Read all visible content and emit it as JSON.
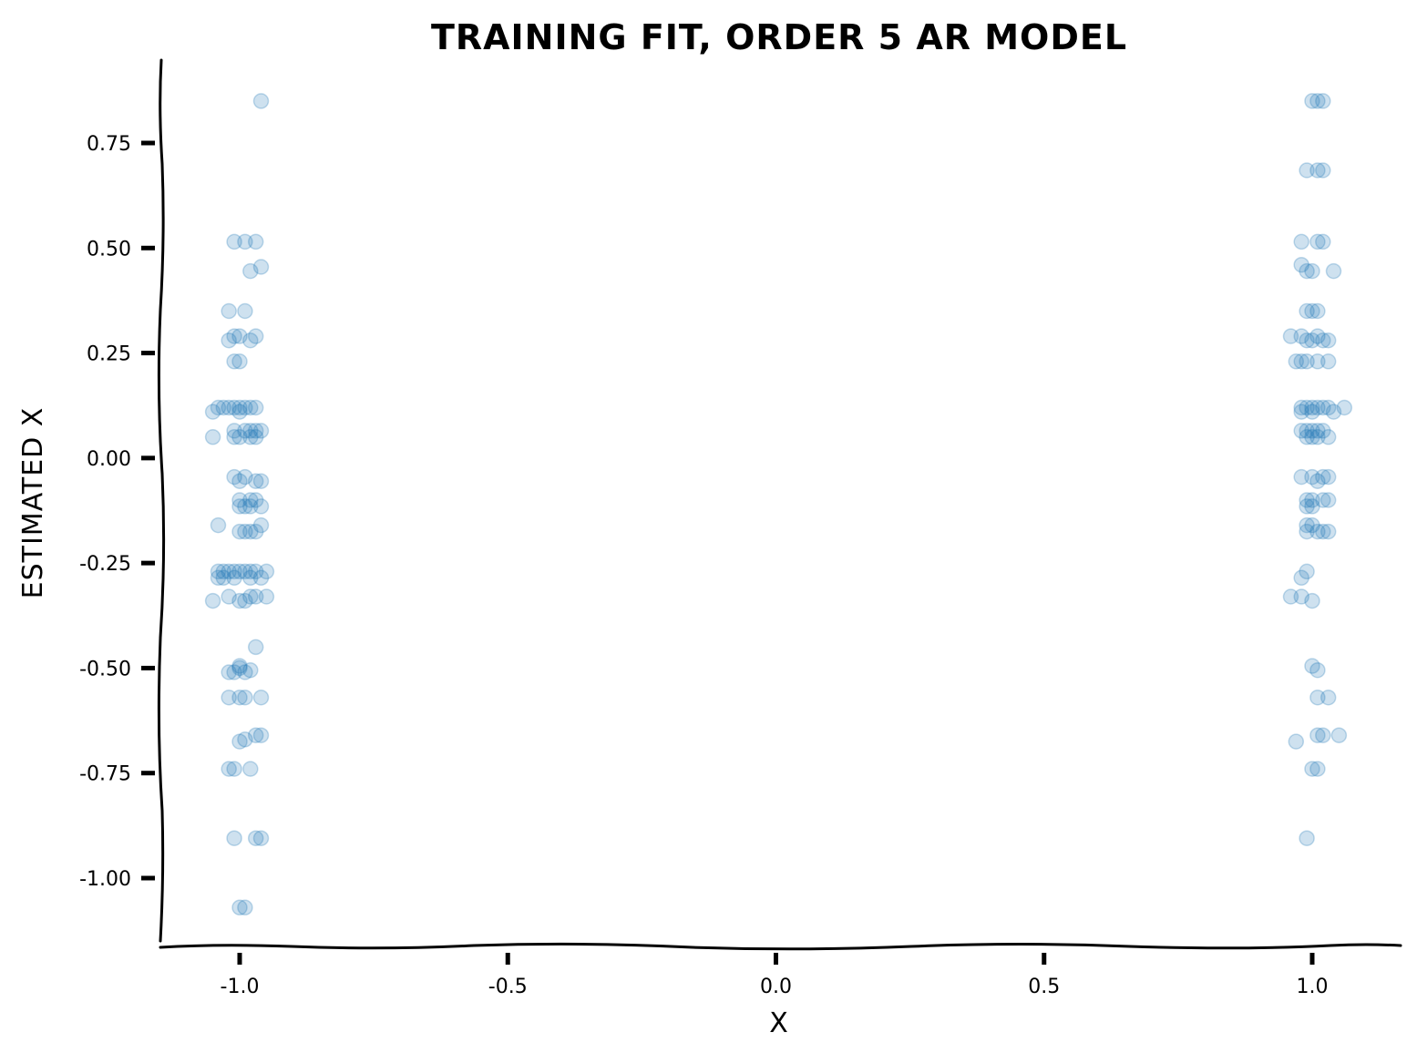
{
  "chart_data": {
    "type": "scatter",
    "title": "Training fit, order 5 AR model",
    "xlabel": "x",
    "ylabel": "Estimated x",
    "xlim": [
      -1.15,
      1.15
    ],
    "ylim": [
      -1.15,
      0.95
    ],
    "xticks": [
      -1.0,
      -0.5,
      0.0,
      0.5,
      1.0
    ],
    "xtick_labels": [
      "-1.0",
      "-0.5",
      "0.0",
      "0.5",
      "1.0"
    ],
    "yticks": [
      -1.0,
      -0.75,
      -0.5,
      -0.25,
      0.0,
      0.25,
      0.5,
      0.75
    ],
    "ytick_labels": [
      "-1.00",
      "-0.75",
      "-0.50",
      "-0.25",
      "0.00",
      "0.25",
      "0.50",
      "0.75"
    ],
    "grid": false,
    "marker_color": "#1f77b4",
    "marker_alpha": 0.22,
    "series": [
      {
        "points": [
          [
            -0.96,
            0.85
          ],
          [
            -1.01,
            0.515
          ],
          [
            -0.99,
            0.515
          ],
          [
            -0.97,
            0.515
          ],
          [
            -0.98,
            0.445
          ],
          [
            -0.96,
            0.455
          ],
          [
            -1.02,
            0.35
          ],
          [
            -0.99,
            0.35
          ],
          [
            -1.02,
            0.28
          ],
          [
            -1.01,
            0.29
          ],
          [
            -1.0,
            0.29
          ],
          [
            -0.98,
            0.28
          ],
          [
            -0.97,
            0.29
          ],
          [
            -1.01,
            0.23
          ],
          [
            -1.0,
            0.23
          ],
          [
            -1.04,
            0.12
          ],
          [
            -1.03,
            0.12
          ],
          [
            -1.02,
            0.12
          ],
          [
            -1.01,
            0.12
          ],
          [
            -1.0,
            0.12
          ],
          [
            -0.99,
            0.12
          ],
          [
            -0.98,
            0.12
          ],
          [
            -0.97,
            0.12
          ],
          [
            -1.05,
            0.11
          ],
          [
            -1.0,
            0.11
          ],
          [
            -1.01,
            0.065
          ],
          [
            -0.99,
            0.065
          ],
          [
            -0.98,
            0.065
          ],
          [
            -0.97,
            0.065
          ],
          [
            -0.96,
            0.065
          ],
          [
            -1.05,
            0.05
          ],
          [
            -1.01,
            0.05
          ],
          [
            -1.0,
            0.05
          ],
          [
            -0.98,
            0.05
          ],
          [
            -0.97,
            0.05
          ],
          [
            -1.01,
            -0.045
          ],
          [
            -0.99,
            -0.045
          ],
          [
            -1.0,
            -0.055
          ],
          [
            -0.97,
            -0.055
          ],
          [
            -0.96,
            -0.055
          ],
          [
            -1.0,
            -0.1
          ],
          [
            -0.98,
            -0.1
          ],
          [
            -0.97,
            -0.1
          ],
          [
            -1.0,
            -0.115
          ],
          [
            -0.99,
            -0.115
          ],
          [
            -0.98,
            -0.115
          ],
          [
            -0.96,
            -0.115
          ],
          [
            -1.04,
            -0.16
          ],
          [
            -0.96,
            -0.16
          ],
          [
            -1.0,
            -0.175
          ],
          [
            -0.99,
            -0.175
          ],
          [
            -0.98,
            -0.175
          ],
          [
            -0.97,
            -0.175
          ],
          [
            -1.04,
            -0.27
          ],
          [
            -1.03,
            -0.27
          ],
          [
            -1.02,
            -0.27
          ],
          [
            -1.01,
            -0.27
          ],
          [
            -1.0,
            -0.27
          ],
          [
            -0.99,
            -0.27
          ],
          [
            -0.98,
            -0.27
          ],
          [
            -0.97,
            -0.27
          ],
          [
            -0.95,
            -0.27
          ],
          [
            -1.04,
            -0.285
          ],
          [
            -1.03,
            -0.285
          ],
          [
            -1.01,
            -0.285
          ],
          [
            -0.98,
            -0.285
          ],
          [
            -0.96,
            -0.285
          ],
          [
            -1.05,
            -0.34
          ],
          [
            -1.02,
            -0.33
          ],
          [
            -1.0,
            -0.34
          ],
          [
            -0.99,
            -0.34
          ],
          [
            -0.98,
            -0.33
          ],
          [
            -0.97,
            -0.33
          ],
          [
            -0.95,
            -0.33
          ],
          [
            -0.97,
            -0.45
          ],
          [
            -1.0,
            -0.5
          ],
          [
            -1.0,
            -0.495
          ],
          [
            -1.02,
            -0.51
          ],
          [
            -1.01,
            -0.51
          ],
          [
            -0.99,
            -0.51
          ],
          [
            -0.98,
            -0.505
          ],
          [
            -1.02,
            -0.57
          ],
          [
            -1.0,
            -0.57
          ],
          [
            -0.99,
            -0.57
          ],
          [
            -0.96,
            -0.57
          ],
          [
            -0.97,
            -0.66
          ],
          [
            -0.96,
            -0.66
          ],
          [
            -1.0,
            -0.675
          ],
          [
            -0.99,
            -0.67
          ],
          [
            -1.02,
            -0.74
          ],
          [
            -1.01,
            -0.74
          ],
          [
            -0.98,
            -0.74
          ],
          [
            -1.01,
            -0.905
          ],
          [
            -0.97,
            -0.905
          ],
          [
            -0.96,
            -0.905
          ],
          [
            -1.0,
            -1.07
          ],
          [
            -0.99,
            -1.07
          ]
        ]
      },
      {
        "points": [
          [
            1.0,
            0.85
          ],
          [
            1.01,
            0.85
          ],
          [
            1.02,
            0.85
          ],
          [
            0.99,
            0.685
          ],
          [
            1.01,
            0.685
          ],
          [
            1.02,
            0.685
          ],
          [
            0.98,
            0.515
          ],
          [
            1.01,
            0.515
          ],
          [
            1.02,
            0.515
          ],
          [
            0.98,
            0.46
          ],
          [
            0.99,
            0.445
          ],
          [
            1.0,
            0.445
          ],
          [
            1.04,
            0.445
          ],
          [
            0.99,
            0.35
          ],
          [
            1.0,
            0.35
          ],
          [
            1.01,
            0.35
          ],
          [
            0.96,
            0.29
          ],
          [
            0.98,
            0.29
          ],
          [
            0.99,
            0.28
          ],
          [
            1.0,
            0.28
          ],
          [
            1.01,
            0.29
          ],
          [
            1.02,
            0.28
          ],
          [
            1.03,
            0.28
          ],
          [
            0.97,
            0.23
          ],
          [
            0.98,
            0.23
          ],
          [
            0.99,
            0.23
          ],
          [
            1.01,
            0.23
          ],
          [
            1.03,
            0.23
          ],
          [
            0.98,
            0.12
          ],
          [
            0.99,
            0.12
          ],
          [
            1.0,
            0.12
          ],
          [
            1.01,
            0.12
          ],
          [
            1.02,
            0.12
          ],
          [
            1.03,
            0.12
          ],
          [
            1.06,
            0.12
          ],
          [
            0.98,
            0.11
          ],
          [
            1.0,
            0.11
          ],
          [
            1.04,
            0.11
          ],
          [
            0.98,
            0.065
          ],
          [
            0.99,
            0.065
          ],
          [
            1.0,
            0.065
          ],
          [
            1.01,
            0.065
          ],
          [
            1.02,
            0.065
          ],
          [
            0.99,
            0.05
          ],
          [
            1.0,
            0.05
          ],
          [
            1.01,
            0.05
          ],
          [
            1.03,
            0.05
          ],
          [
            0.98,
            -0.045
          ],
          [
            1.0,
            -0.045
          ],
          [
            1.01,
            -0.055
          ],
          [
            1.02,
            -0.045
          ],
          [
            1.03,
            -0.045
          ],
          [
            0.99,
            -0.1
          ],
          [
            1.0,
            -0.1
          ],
          [
            1.02,
            -0.1
          ],
          [
            1.03,
            -0.1
          ],
          [
            0.99,
            -0.115
          ],
          [
            1.0,
            -0.115
          ],
          [
            0.99,
            -0.16
          ],
          [
            1.0,
            -0.16
          ],
          [
            1.01,
            -0.175
          ],
          [
            1.02,
            -0.175
          ],
          [
            1.03,
            -0.175
          ],
          [
            0.99,
            -0.175
          ],
          [
            0.98,
            -0.285
          ],
          [
            0.99,
            -0.27
          ],
          [
            0.96,
            -0.33
          ],
          [
            0.98,
            -0.33
          ],
          [
            1.0,
            -0.34
          ],
          [
            1.0,
            -0.495
          ],
          [
            1.01,
            -0.505
          ],
          [
            1.01,
            -0.57
          ],
          [
            1.03,
            -0.57
          ],
          [
            0.97,
            -0.675
          ],
          [
            1.01,
            -0.66
          ],
          [
            1.02,
            -0.66
          ],
          [
            1.05,
            -0.66
          ],
          [
            1.0,
            -0.74
          ],
          [
            1.01,
            -0.74
          ],
          [
            0.99,
            -0.905
          ]
        ]
      }
    ]
  }
}
